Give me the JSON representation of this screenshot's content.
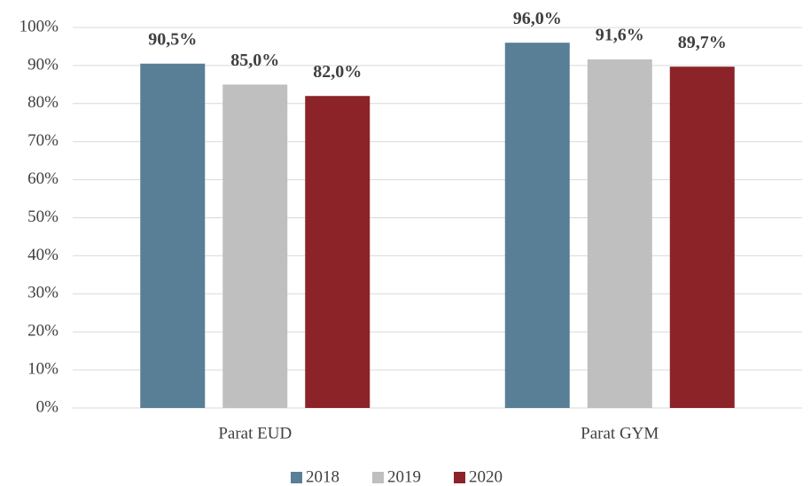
{
  "chart_data": {
    "type": "bar",
    "categories": [
      "Parat EUD",
      "Parat GYM"
    ],
    "series": [
      {
        "name": "2018",
        "color": "#587f96",
        "values": [
          90.5,
          96.0
        ],
        "value_labels": [
          "90,5%",
          "96,0%"
        ]
      },
      {
        "name": "2019",
        "color": "#bfbfbf",
        "values": [
          85.0,
          91.6
        ],
        "value_labels": [
          "85,0%",
          "91,6%"
        ]
      },
      {
        "name": "2020",
        "color": "#8b2328",
        "values": [
          82.0,
          89.7
        ],
        "value_labels": [
          "82,0%",
          "89,7%"
        ]
      }
    ],
    "ylim": [
      0,
      100
    ],
    "yticks": [
      {
        "value": 0,
        "label": "0%"
      },
      {
        "value": 10,
        "label": "10%"
      },
      {
        "value": 20,
        "label": "20%"
      },
      {
        "value": 30,
        "label": "30%"
      },
      {
        "value": 40,
        "label": "40%"
      },
      {
        "value": 50,
        "label": "50%"
      },
      {
        "value": 60,
        "label": "60%"
      },
      {
        "value": 70,
        "label": "70%"
      },
      {
        "value": 80,
        "label": "80%"
      },
      {
        "value": 90,
        "label": "90%"
      },
      {
        "value": 100,
        "label": "100%"
      }
    ],
    "grid": true,
    "legend": "bottom"
  }
}
